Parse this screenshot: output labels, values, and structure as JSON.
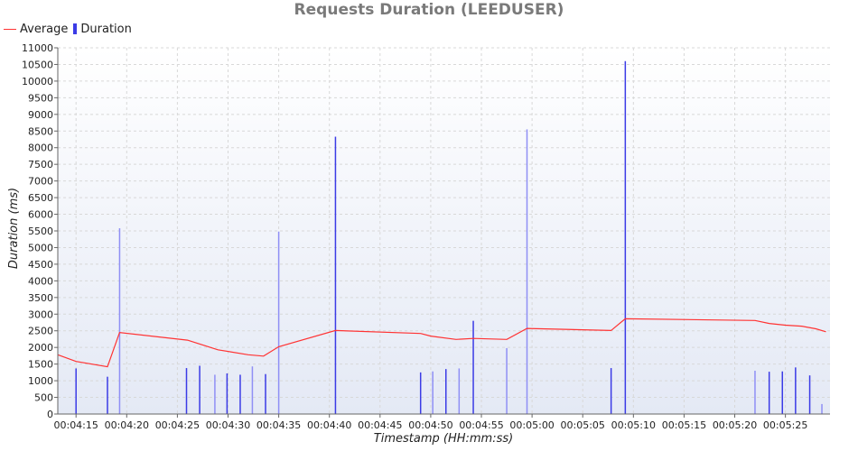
{
  "chart_data": {
    "type": "bar",
    "title": "Requests Duration (LEEDUSER)",
    "xlabel": "Timestamp (HH:mm:ss)",
    "ylabel": "Duration (ms)",
    "ylim": [
      0,
      11000
    ],
    "y_ticks": [
      "0",
      "500",
      "1000",
      "1500",
      "2000",
      "2500",
      "3000",
      "3500",
      "4000",
      "4500",
      "5000",
      "5500",
      "6000",
      "6500",
      "7000",
      "7500",
      "8000",
      "8500",
      "9000",
      "9500",
      "10000",
      "10500",
      "11000"
    ],
    "x_range": [
      "00:04:15",
      "00:05:29"
    ],
    "x_ticks": [
      "00:04:15",
      "00:04:20",
      "00:04:25",
      "00:04:30",
      "00:04:35",
      "00:04:40",
      "00:04:45",
      "00:04:50",
      "00:04:55",
      "00:05:00",
      "00:05:05",
      "00:05:10",
      "00:05:15",
      "00:05:20",
      "00:05:25"
    ],
    "grid": true,
    "legend_position": "top-left",
    "colors": {
      "average": "#ff3333",
      "duration": "#3b3be6",
      "duration_light": "#8f8ff5",
      "background_top": "#ffffff",
      "background_bottom": "#e4e9f5",
      "grid": "#d8d8d8"
    },
    "series": [
      {
        "name": "Average",
        "type": "line",
        "points": [
          [
            "00:04:13.2",
            1780
          ],
          [
            "00:04:15",
            1580
          ],
          [
            "00:04:18.1",
            1420
          ],
          [
            "00:04:19.3",
            2450
          ],
          [
            "00:04:26",
            2220
          ],
          [
            "00:04:29",
            1930
          ],
          [
            "00:04:32",
            1780
          ],
          [
            "00:04:33.5",
            1740
          ],
          [
            "00:04:35",
            2020
          ],
          [
            "00:04:40.6",
            2510
          ],
          [
            "00:04:49",
            2420
          ],
          [
            "00:04:50",
            2340
          ],
          [
            "00:04:52.5",
            2240
          ],
          [
            "00:04:54.2",
            2270
          ],
          [
            "00:04:57.5",
            2240
          ],
          [
            "00:04:59.5",
            2570
          ],
          [
            "00:05:07.8",
            2510
          ],
          [
            "00:05:09.2",
            2860
          ],
          [
            "00:05:22",
            2810
          ],
          [
            "00:05:23.4",
            2720
          ],
          [
            "00:05:25",
            2670
          ],
          [
            "00:05:26.6",
            2640
          ],
          [
            "00:05:28",
            2560
          ],
          [
            "00:05:29",
            2470
          ]
        ]
      },
      {
        "name": "Duration",
        "type": "bar",
        "points": [
          [
            "00:04:15",
            1370,
            "dark"
          ],
          [
            "00:04:18.1",
            1120,
            "dark"
          ],
          [
            "00:04:19.3",
            5580,
            "light"
          ],
          [
            "00:04:25.9",
            1380,
            "dark"
          ],
          [
            "00:04:27.2",
            1450,
            "dark"
          ],
          [
            "00:04:28.7",
            1180,
            "light"
          ],
          [
            "00:04:29.9",
            1220,
            "dark"
          ],
          [
            "00:04:31.2",
            1180,
            "dark"
          ],
          [
            "00:04:32.4",
            1430,
            "light"
          ],
          [
            "00:04:33.7",
            1200,
            "dark"
          ],
          [
            "00:04:35",
            5480,
            "light"
          ],
          [
            "00:04:40.6",
            8330,
            "dark"
          ],
          [
            "00:04:49",
            1250,
            "dark"
          ],
          [
            "00:04:50.2",
            1280,
            "light"
          ],
          [
            "00:04:51.5",
            1350,
            "dark"
          ],
          [
            "00:04:52.8",
            1370,
            "light"
          ],
          [
            "00:04:54.2",
            2800,
            "dark"
          ],
          [
            "00:04:57.5",
            1980,
            "light"
          ],
          [
            "00:04:59.5",
            8550,
            "light"
          ],
          [
            "00:05:07.8",
            1380,
            "dark"
          ],
          [
            "00:05:09.2",
            10600,
            "dark"
          ],
          [
            "00:05:22",
            1300,
            "light"
          ],
          [
            "00:05:23.4",
            1270,
            "dark"
          ],
          [
            "00:05:24.7",
            1280,
            "dark"
          ],
          [
            "00:05:26",
            1400,
            "dark"
          ],
          [
            "00:05:27.4",
            1160,
            "dark"
          ],
          [
            "00:05:28.6",
            300,
            "light"
          ]
        ]
      }
    ]
  }
}
